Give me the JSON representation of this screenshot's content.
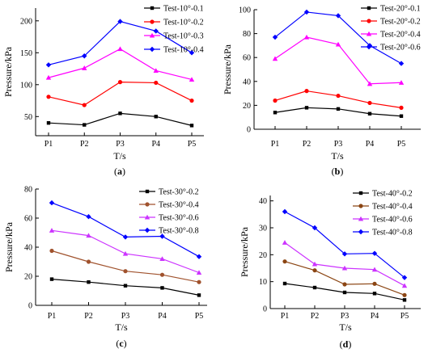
{
  "chart_data": [
    {
      "panel": "a",
      "type": "line",
      "categories": [
        "P1",
        "P2",
        "P3",
        "P4",
        "P5"
      ],
      "xlabel": "T/s",
      "ylabel": "Pressure/kPa",
      "ylim": [
        20,
        220
      ],
      "yticks": [
        50,
        100,
        150,
        200
      ],
      "legend_position": "top-right",
      "series": [
        {
          "name": "Test-10°-0.1",
          "color": "#000000",
          "marker": "square",
          "values": [
            40,
            37,
            55,
            50,
            36
          ]
        },
        {
          "name": "Test-10°-0.2",
          "color": "#ff0000",
          "marker": "circle",
          "values": [
            81,
            68,
            104,
            103,
            75
          ]
        },
        {
          "name": "Test-10°-0.3",
          "color": "#ff00ff",
          "marker": "triangle-up",
          "values": [
            111,
            126,
            156,
            122,
            108
          ]
        },
        {
          "name": "Test-10°-0.4",
          "color": "#0000ff",
          "marker": "diamond",
          "values": [
            131,
            145,
            199,
            184,
            150
          ]
        }
      ]
    },
    {
      "panel": "b",
      "type": "line",
      "categories": [
        "P1",
        "P2",
        "P3",
        "P4",
        "P5"
      ],
      "xlabel": "T/s",
      "ylabel": "Pressure/kPa",
      "ylim": [
        0,
        100
      ],
      "yticks": [
        0,
        20,
        40,
        60,
        80,
        100
      ],
      "legend_position": "top-right",
      "series": [
        {
          "name": "Test-20°-0.1",
          "color": "#000000",
          "marker": "square",
          "values": [
            14,
            18,
            17,
            13,
            11
          ]
        },
        {
          "name": "Test-20°-0.2",
          "color": "#ff0000",
          "marker": "circle",
          "values": [
            24,
            32,
            28,
            22,
            18
          ]
        },
        {
          "name": "Test-20°-0.4",
          "color": "#ff00ff",
          "marker": "triangle-up",
          "values": [
            59,
            77,
            71,
            38,
            39
          ]
        },
        {
          "name": "Test-20°-0.6",
          "color": "#0000ff",
          "marker": "diamond",
          "values": [
            77,
            98,
            95,
            70,
            55
          ]
        }
      ]
    },
    {
      "panel": "c",
      "type": "line",
      "categories": [
        "P1",
        "P2",
        "P3",
        "P4",
        "P5"
      ],
      "xlabel": "T/s",
      "ylabel": "Pressure/kPa",
      "ylim": [
        0,
        80
      ],
      "yticks": [
        0,
        20,
        40,
        60,
        80
      ],
      "legend_position": "top-right",
      "series": [
        {
          "name": "Test-30°-0.2",
          "color": "#000000",
          "marker": "square",
          "values": [
            18,
            16,
            13.5,
            12,
            7
          ]
        },
        {
          "name": "Test-30°-0.4",
          "color": "#a0522d",
          "marker": "circle",
          "values": [
            37.5,
            30,
            23.5,
            21,
            16
          ]
        },
        {
          "name": "Test-30°-0.6",
          "color": "#cc33ff",
          "marker": "triangle-up",
          "values": [
            51.5,
            48,
            35.5,
            32,
            22.5
          ]
        },
        {
          "name": "Test-30°-0.8",
          "color": "#0000ff",
          "marker": "diamond",
          "values": [
            70.5,
            61,
            47,
            47.5,
            33.5
          ]
        }
      ]
    },
    {
      "panel": "d",
      "type": "line",
      "categories": [
        "P1",
        "P2",
        "P3",
        "P4",
        "P5"
      ],
      "xlabel": "T/s",
      "ylabel": "Pressure/kPa",
      "ylim": [
        0,
        42
      ],
      "yticks": [
        0,
        10,
        20,
        30,
        40
      ],
      "legend_position": "top-right",
      "series": [
        {
          "name": "Test-40°-0.2",
          "color": "#000000",
          "marker": "square",
          "values": [
            9.3,
            7.8,
            6,
            5.6,
            3.2
          ]
        },
        {
          "name": "Test-40°-0.4",
          "color": "#8b4513",
          "marker": "circle",
          "values": [
            17.5,
            14.2,
            9,
            9.2,
            5
          ]
        },
        {
          "name": "Test-40°-0.6",
          "color": "#cc33ff",
          "marker": "triangle-up",
          "values": [
            24.5,
            16.5,
            15,
            14.5,
            8.5
          ]
        },
        {
          "name": "Test-40°-0.8",
          "color": "#0000ff",
          "marker": "diamond",
          "values": [
            36,
            30,
            20.3,
            20.5,
            11.5
          ]
        }
      ]
    }
  ]
}
